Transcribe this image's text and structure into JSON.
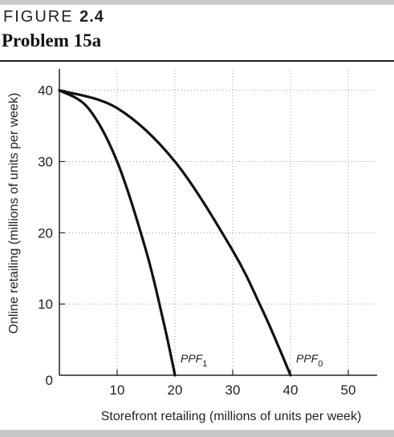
{
  "figure": {
    "label": "FIGURE",
    "number": "2.4",
    "title": "Problem 15a"
  },
  "chart_data": {
    "type": "line",
    "xlabel": "Storefront retailing (millions of units per week)",
    "ylabel": "Online retailing (millions of units per week)",
    "xlim": [
      0,
      55
    ],
    "ylim": [
      0,
      43
    ],
    "xticks": [
      0,
      10,
      20,
      30,
      40,
      50
    ],
    "yticks": [
      0,
      10,
      20,
      30,
      40
    ],
    "grid": "dotted",
    "series": [
      {
        "name": "PPF0",
        "label_main": "PPF",
        "label_sub": "0",
        "x": [
          0,
          10,
          20,
          30,
          35,
          38,
          40
        ],
        "y": [
          40,
          37.5,
          30,
          17.5,
          9.4,
          3.9,
          0
        ]
      },
      {
        "name": "PPF1",
        "label_main": "PPF",
        "label_sub": "1",
        "x": [
          0,
          5,
          10,
          15,
          18,
          19.5,
          20
        ],
        "y": [
          40,
          37.5,
          30,
          17.5,
          7.6,
          2.0,
          0
        ]
      }
    ]
  }
}
